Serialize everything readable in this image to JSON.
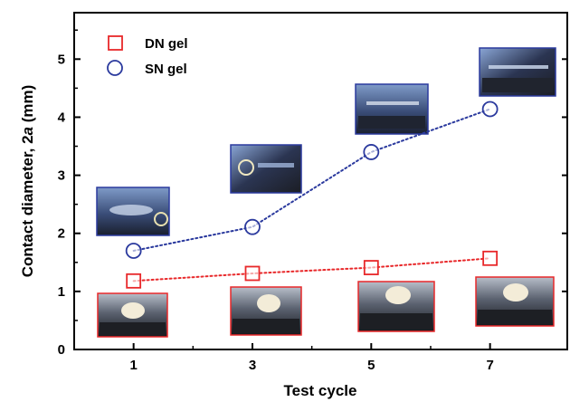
{
  "chart_data": {
    "type": "scatter",
    "title": "",
    "xlabel": "Test cycle",
    "ylabel_prefix": "Contact diameter, 2",
    "ylabel_italic": "a",
    "ylabel_suffix": " (mm)",
    "x_ticks": [
      "1",
      "3",
      "5",
      "7"
    ],
    "y_ticks": [
      "0",
      "1",
      "2",
      "3",
      "4",
      "5"
    ],
    "xlim": [
      0,
      8.3
    ],
    "ylim": [
      0,
      5.8
    ],
    "legend_position": "top-left",
    "series": [
      {
        "name": "DN gel",
        "marker": "square",
        "color": "#e8282a",
        "line_style": "dotted",
        "x": [
          1,
          3,
          5,
          7
        ],
        "y": [
          1.18,
          1.31,
          1.41,
          1.57
        ]
      },
      {
        "name": "SN gel",
        "marker": "circle",
        "color": "#2b3a9e",
        "line_style": "dotted",
        "x": [
          1,
          3,
          5,
          7
        ],
        "y": [
          1.7,
          2.11,
          3.4,
          4.14
        ]
      }
    ],
    "inset_photos": [
      {
        "name": "sn-gel-cycle-1-photo",
        "series": "SN gel",
        "cycle": 1
      },
      {
        "name": "sn-gel-cycle-3-photo",
        "series": "SN gel",
        "cycle": 3
      },
      {
        "name": "sn-gel-cycle-5-photo",
        "series": "SN gel",
        "cycle": 5
      },
      {
        "name": "sn-gel-cycle-7-photo",
        "series": "SN gel",
        "cycle": 7
      },
      {
        "name": "dn-gel-cycle-1-photo",
        "series": "DN gel",
        "cycle": 1
      },
      {
        "name": "dn-gel-cycle-3-photo",
        "series": "DN gel",
        "cycle": 3
      },
      {
        "name": "dn-gel-cycle-5-photo",
        "series": "DN gel",
        "cycle": 5
      },
      {
        "name": "dn-gel-cycle-7-photo",
        "series": "DN gel",
        "cycle": 7
      }
    ]
  }
}
